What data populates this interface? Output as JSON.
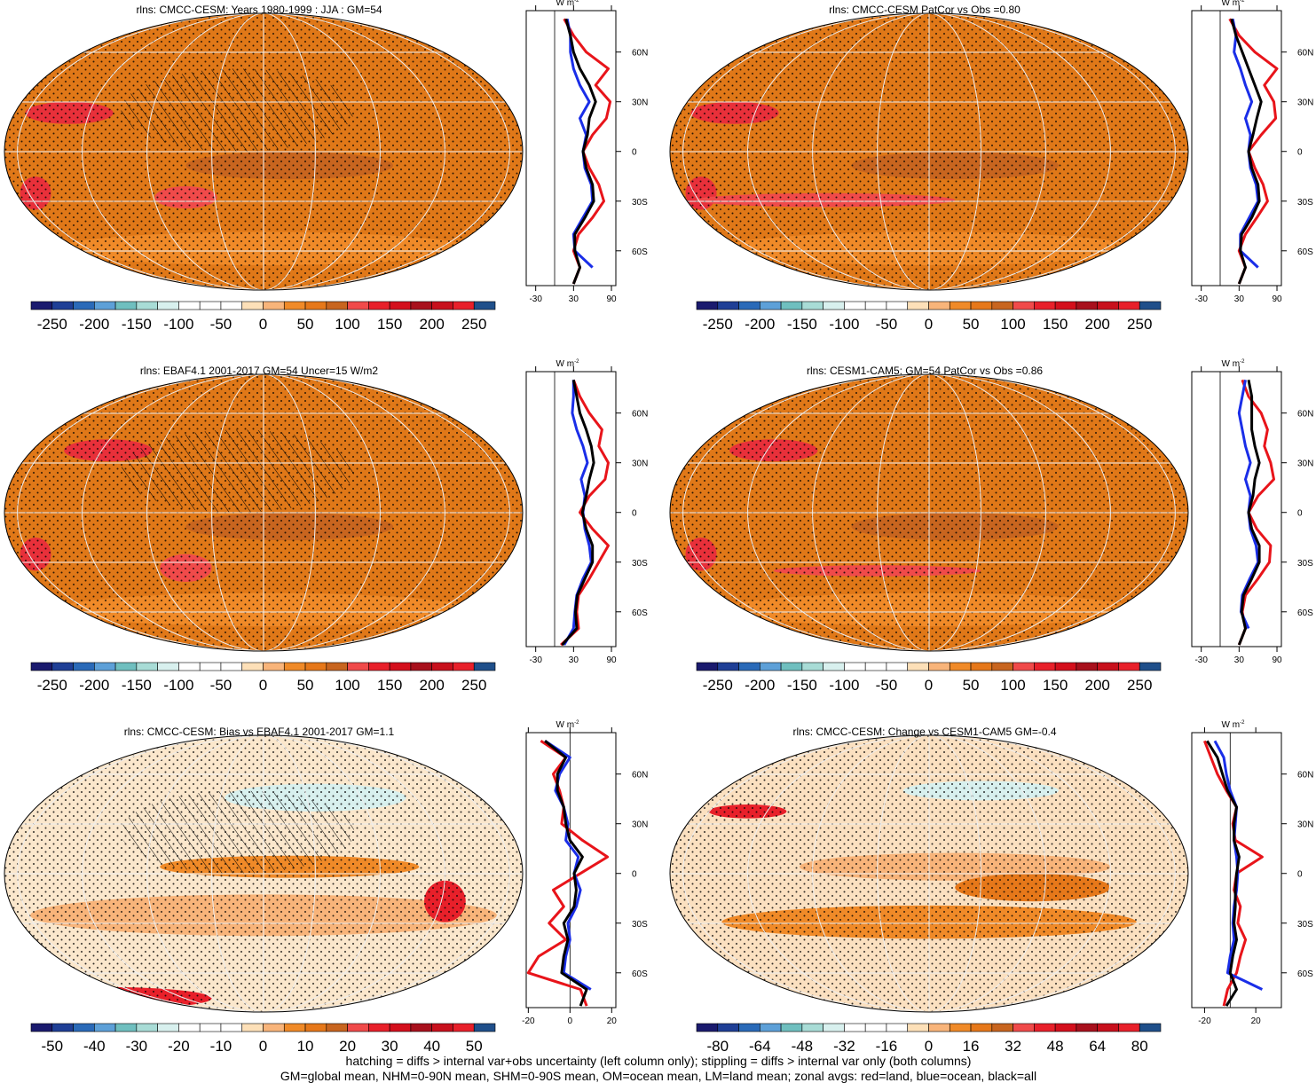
{
  "chart_data": [
    {
      "type": "zonal-map",
      "title": "rlns: CMCC-CESM: Years 1980-1999 : JJA : GM=54",
      "colorbar_ticks": [
        -250,
        -200,
        -150,
        -100,
        -50,
        0,
        50,
        100,
        150,
        200,
        250
      ],
      "colorbar_colors": [
        "#1a1a6e",
        "#1f3f96",
        "#2a6ab8",
        "#5da0d8",
        "#6fbfbf",
        "#a8dcd6",
        "#d8f0ee",
        "#ffffff",
        "#ffffff",
        "#ffffff",
        "#fde0b8",
        "#f8b47a",
        "#f08a28",
        "#e6781a",
        "#c8651f",
        "#f04a4a",
        "#e8202a",
        "#d40f1c",
        "#a8101c",
        "#c8101c",
        "#e8202a",
        "#1f4f8a"
      ],
      "x_label": "W m",
      "x_label_exponent": "-2",
      "xlim": [
        -45,
        97
      ],
      "xticks": [
        -30,
        30,
        90
      ],
      "ylim": [
        -81,
        85
      ],
      "yticks": [
        {
          "value": 60,
          "label": "60N"
        },
        {
          "value": 30,
          "label": "30N"
        },
        0,
        {
          "value": -30,
          "label": "30S"
        },
        {
          "value": -60,
          "label": "60S"
        }
      ],
      "y": [
        -80,
        -70,
        -60,
        -50,
        -40,
        -30,
        -20,
        -10,
        0,
        10,
        20,
        30,
        40,
        50,
        60,
        70,
        80
      ],
      "series": [
        {
          "color": "#e8141a",
          "values": [
            30,
            40,
            30,
            38,
            60,
            78,
            70,
            55,
            45,
            60,
            82,
            88,
            65,
            85,
            50,
            30,
            15
          ]
        },
        {
          "color": "#1a2ee8",
          "values": [
            null,
            60,
            32,
            30,
            45,
            60,
            58,
            48,
            45,
            50,
            40,
            55,
            40,
            30,
            25,
            25,
            20
          ]
        },
        {
          "color": "#000000",
          "values": [
            30,
            40,
            32,
            32,
            48,
            62,
            60,
            50,
            45,
            52,
            55,
            65,
            55,
            40,
            30,
            25,
            18
          ]
        }
      ]
    },
    {
      "type": "zonal-map",
      "title": "rlns: CMCC-CESM PatCor vs Obs =0.80",
      "colorbar_ticks": [
        -250,
        -200,
        -150,
        -100,
        -50,
        0,
        50,
        100,
        150,
        200,
        250
      ],
      "colorbar_colors": [
        "#1a1a6e",
        "#1f3f96",
        "#2a6ab8",
        "#5da0d8",
        "#6fbfbf",
        "#a8dcd6",
        "#d8f0ee",
        "#ffffff",
        "#ffffff",
        "#ffffff",
        "#fde0b8",
        "#f8b47a",
        "#f08a28",
        "#e6781a",
        "#c8651f",
        "#f04a4a",
        "#e8202a",
        "#d40f1c",
        "#a8101c",
        "#c8101c",
        "#e8202a",
        "#1f4f8a"
      ],
      "x_label": "W m",
      "x_label_exponent": "-2",
      "xlim": [
        -45,
        97
      ],
      "xticks": [
        -30,
        30,
        90
      ],
      "ylim": [
        -81,
        85
      ],
      "yticks": [
        {
          "value": 60,
          "label": "60N"
        },
        {
          "value": 30,
          "label": "30N"
        },
        0,
        {
          "value": -30,
          "label": "30S"
        },
        {
          "value": -60,
          "label": "60S"
        }
      ],
      "y": [
        -80,
        -70,
        -60,
        -50,
        -40,
        -30,
        -20,
        -10,
        0,
        10,
        20,
        30,
        40,
        50,
        60,
        70,
        80
      ],
      "series": [
        {
          "color": "#e8141a",
          "values": [
            30,
            40,
            30,
            40,
            58,
            75,
            68,
            55,
            45,
            65,
            88,
            85,
            70,
            90,
            55,
            30,
            15
          ]
        },
        {
          "color": "#1a2ee8",
          "values": [
            null,
            60,
            32,
            32,
            46,
            60,
            57,
            48,
            45,
            48,
            40,
            50,
            40,
            32,
            22,
            25,
            20
          ]
        },
        {
          "color": "#000000",
          "values": [
            30,
            40,
            32,
            34,
            50,
            62,
            60,
            50,
            45,
            52,
            58,
            65,
            55,
            45,
            35,
            25,
            18
          ]
        }
      ]
    },
    {
      "type": "zonal-map",
      "title": "rlns: EBAF4.1 2001-2017 GM=54 Uncer=15 W/m2",
      "colorbar_ticks": [
        -250,
        -200,
        -150,
        -100,
        -50,
        0,
        50,
        100,
        150,
        200,
        250
      ],
      "colorbar_colors": [
        "#1a1a6e",
        "#1f3f96",
        "#2a6ab8",
        "#5da0d8",
        "#6fbfbf",
        "#a8dcd6",
        "#d8f0ee",
        "#ffffff",
        "#ffffff",
        "#ffffff",
        "#fde0b8",
        "#f8b47a",
        "#f08a28",
        "#e6781a",
        "#c8651f",
        "#f04a4a",
        "#e8202a",
        "#d40f1c",
        "#a8101c",
        "#c8101c",
        "#e8202a",
        "#1f4f8a"
      ],
      "x_label": "W m",
      "x_label_exponent": "-2",
      "xlim": [
        -45,
        97
      ],
      "xticks": [
        -30,
        30,
        90
      ],
      "ylim": [
        -81,
        85
      ],
      "yticks": [
        {
          "value": 60,
          "label": "60N"
        },
        {
          "value": 30,
          "label": "30N"
        },
        0,
        {
          "value": -30,
          "label": "30S"
        },
        {
          "value": -60,
          "label": "60S"
        }
      ],
      "y": [
        -80,
        -70,
        -60,
        -50,
        -40,
        -30,
        -20,
        -10,
        0,
        10,
        20,
        30,
        40,
        50,
        60,
        70,
        80
      ],
      "series": [
        {
          "color": "#e8141a",
          "values": [
            10,
            38,
            35,
            38,
            55,
            70,
            85,
            60,
            40,
            55,
            80,
            85,
            70,
            75,
            55,
            40,
            30
          ]
        },
        {
          "color": "#1a2ee8",
          "values": [
            15,
            30,
            32,
            35,
            45,
            58,
            55,
            48,
            45,
            48,
            42,
            52,
            45,
            35,
            28,
            30,
            30
          ]
        },
        {
          "color": "#000000",
          "values": [
            12,
            35,
            33,
            36,
            48,
            60,
            60,
            50,
            44,
            50,
            55,
            62,
            58,
            50,
            40,
            35,
            30
          ]
        }
      ]
    },
    {
      "type": "zonal-map",
      "title": "rlns: CESM1-CAM5: GM=54 PatCor vs Obs =0.86",
      "colorbar_ticks": [
        -250,
        -200,
        -150,
        -100,
        -50,
        0,
        50,
        100,
        150,
        200,
        250
      ],
      "colorbar_colors": [
        "#1a1a6e",
        "#1f3f96",
        "#2a6ab8",
        "#5da0d8",
        "#6fbfbf",
        "#a8dcd6",
        "#d8f0ee",
        "#ffffff",
        "#ffffff",
        "#ffffff",
        "#fde0b8",
        "#f8b47a",
        "#f08a28",
        "#e6781a",
        "#c8651f",
        "#f04a4a",
        "#e8202a",
        "#d40f1c",
        "#a8101c",
        "#c8101c",
        "#e8202a",
        "#1f4f8a"
      ],
      "x_label": "W m",
      "x_label_exponent": "-2",
      "xlim": [
        -45,
        97
      ],
      "xticks": [
        -30,
        30,
        90
      ],
      "ylim": [
        -81,
        85
      ],
      "yticks": [
        {
          "value": 60,
          "label": "60N"
        },
        {
          "value": 30,
          "label": "30N"
        },
        0,
        {
          "value": -30,
          "label": "30S"
        },
        {
          "value": -60,
          "label": "60S"
        }
      ],
      "y": [
        -80,
        -70,
        -60,
        -50,
        -40,
        -30,
        -20,
        -10,
        0,
        10,
        20,
        30,
        40,
        50,
        60,
        70,
        80
      ],
      "series": [
        {
          "color": "#e8141a",
          "values": [
            30,
            40,
            35,
            40,
            60,
            78,
            80,
            58,
            45,
            60,
            85,
            80,
            70,
            75,
            65,
            45,
            35
          ]
        },
        {
          "color": "#1a2ee8",
          "values": [
            null,
            45,
            33,
            35,
            47,
            60,
            57,
            48,
            45,
            48,
            40,
            48,
            40,
            35,
            30,
            35,
            40
          ]
        },
        {
          "color": "#000000",
          "values": [
            30,
            40,
            34,
            37,
            50,
            62,
            62,
            50,
            45,
            52,
            55,
            62,
            55,
            50,
            50,
            50,
            45
          ]
        }
      ]
    },
    {
      "type": "zonal-map",
      "title": "rlns: CMCC-CESM: Bias vs EBAF4.1 2001-2017 GM=1.1",
      "colorbar_ticks": [
        -50,
        -40,
        -30,
        -20,
        -10,
        0,
        10,
        20,
        30,
        40,
        50
      ],
      "colorbar_colors": [
        "#1a1a6e",
        "#1f3f96",
        "#2a6ab8",
        "#5da0d8",
        "#6fbfbf",
        "#a8dcd6",
        "#d8f0ee",
        "#ffffff",
        "#ffffff",
        "#ffffff",
        "#fde0b8",
        "#f8b47a",
        "#f08a28",
        "#e6781a",
        "#c8651f",
        "#f04a4a",
        "#e8202a",
        "#d40f1c",
        "#a8101c",
        "#c8101c",
        "#e8202a",
        "#1f4f8a"
      ],
      "x_label": "W m",
      "x_label_exponent": "-2",
      "xlim": [
        -21,
        22
      ],
      "xticks": [
        -20,
        0,
        20
      ],
      "ylim": [
        -81,
        85
      ],
      "yticks": [
        {
          "value": 60,
          "label": "60N"
        },
        {
          "value": 30,
          "label": "30N"
        },
        0,
        {
          "value": -30,
          "label": "30S"
        },
        {
          "value": -60,
          "label": "60S"
        }
      ],
      "y": [
        -80,
        -70,
        -60,
        -50,
        -40,
        -30,
        -20,
        -10,
        0,
        10,
        20,
        30,
        40,
        50,
        60,
        70,
        80
      ],
      "series": [
        {
          "color": "#e8141a",
          "values": [
            8,
            5,
            -20,
            -15,
            -2,
            -10,
            -3,
            -8,
            5,
            18,
            6,
            -4,
            -3,
            -5,
            -8,
            -2,
            -14
          ]
        },
        {
          "color": "#1a2ee8",
          "values": [
            null,
            10,
            -3,
            -2,
            0,
            -1,
            3,
            5,
            2,
            4,
            -2,
            -1,
            -3,
            -7,
            -5,
            0,
            -12
          ]
        },
        {
          "color": "#000000",
          "values": [
            5,
            8,
            -4,
            -3,
            -1,
            -3,
            2,
            3,
            2,
            6,
            0,
            -2,
            -3,
            -6,
            -6,
            -2,
            -12
          ]
        }
      ]
    },
    {
      "type": "zonal-map",
      "title": "rlns: CMCC-CESM: Change vs CESM1-CAM5 GM=-0.4",
      "colorbar_ticks": [
        -80,
        -64,
        -48,
        -32,
        -16,
        0,
        16,
        32,
        48,
        64,
        80
      ],
      "colorbar_colors": [
        "#1a1a6e",
        "#1f3f96",
        "#2a6ab8",
        "#5da0d8",
        "#6fbfbf",
        "#a8dcd6",
        "#d8f0ee",
        "#ffffff",
        "#ffffff",
        "#ffffff",
        "#fde0b8",
        "#f8b47a",
        "#f08a28",
        "#e6781a",
        "#c8651f",
        "#f04a4a",
        "#e8202a",
        "#d40f1c",
        "#a8101c",
        "#c8101c",
        "#e8202a",
        "#1f4f8a"
      ],
      "x_label": "W m",
      "x_label_exponent": "-2",
      "xlim": [
        -30,
        40
      ],
      "xticks": [
        -20,
        20
      ],
      "ylim": [
        -81,
        85
      ],
      "yticks": [
        {
          "value": 60,
          "label": "60N"
        },
        {
          "value": 30,
          "label": "30N"
        },
        0,
        {
          "value": -30,
          "label": "30S"
        },
        {
          "value": -60,
          "label": "60S"
        }
      ],
      "y": [
        -80,
        -70,
        -60,
        -50,
        -40,
        -30,
        -20,
        -10,
        0,
        10,
        20,
        30,
        40,
        50,
        60,
        70,
        80
      ],
      "series": [
        {
          "color": "#e8141a",
          "values": [
            -5,
            -2,
            5,
            8,
            12,
            6,
            8,
            3,
            5,
            25,
            4,
            2,
            5,
            -3,
            -10,
            -15,
            -20
          ]
        },
        {
          "color": "#1a2ee8",
          "values": [
            null,
            25,
            -2,
            0,
            3,
            2,
            3,
            5,
            6,
            5,
            3,
            4,
            5,
            0,
            -3,
            -5,
            -12
          ]
        },
        {
          "color": "#000000",
          "values": [
            -3,
            5,
            0,
            2,
            5,
            3,
            4,
            4,
            5,
            7,
            3,
            3,
            5,
            -2,
            -6,
            -10,
            -18
          ]
        }
      ]
    }
  ],
  "footnote": [
    "hatching = diffs > internal var+obs uncertainty (left column only); stippling = diffs > internal var only (both columns)",
    "GM=global mean, NHM=0-90N mean, SHM=0-90S mean, OM=ocean mean, LM=land mean; zonal avgs: red=land, blue=ocean, black=all"
  ]
}
